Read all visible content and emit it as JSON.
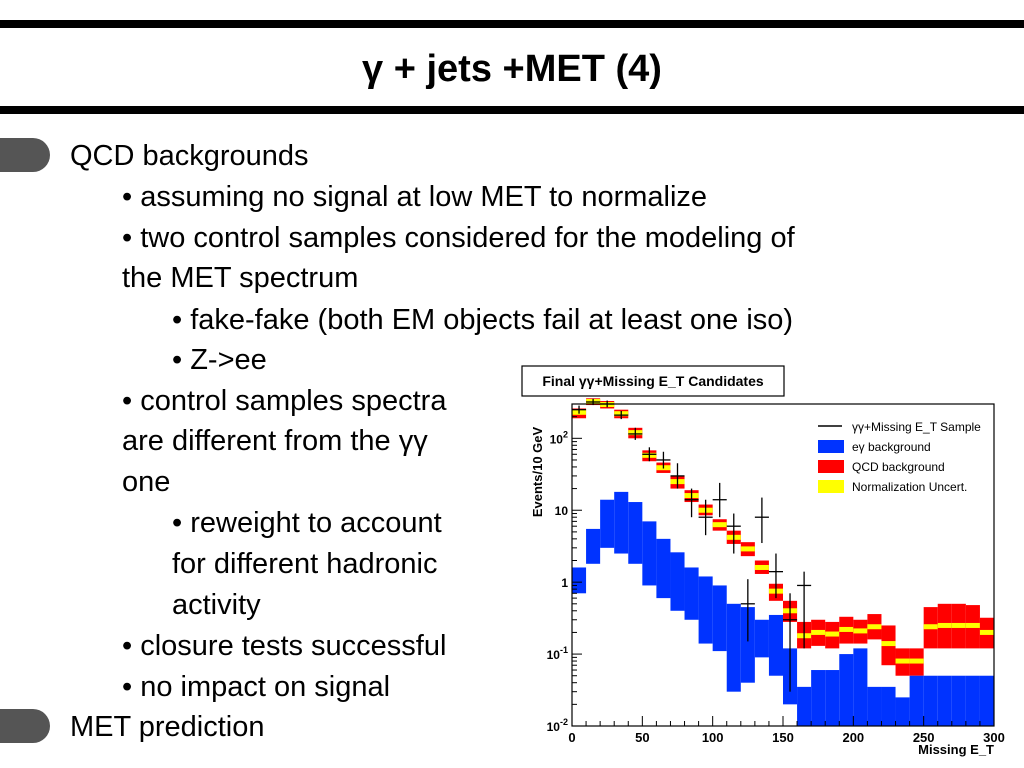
{
  "slide": {
    "title": "γ + jets +MET (4)",
    "lines": [
      "QCD backgrounds",
      "• assuming no signal at low MET to normalize",
      "• two control samples considered for the modeling of",
      "the MET spectrum",
      "• fake-fake (both EM objects fail at least one iso)",
      "• Z->ee",
      "• control samples spectra",
      "are different from the γγ",
      "one",
      "• reweight to account",
      "for different hadronic",
      "activity",
      "• closure tests successful",
      "• no impact on signal",
      "MET prediction"
    ]
  },
  "chart_data": {
    "type": "histogram",
    "title": "Final γγ+Missing E_T Candidates",
    "xlabel": "Missing E_T",
    "ylabel": "Events/10 GeV",
    "x_scale": "linear",
    "y_scale": "log",
    "xlim": [
      0,
      300
    ],
    "ylim": [
      0.01,
      300
    ],
    "x_ticks": [
      "0",
      "50",
      "100",
      "150",
      "200",
      "250",
      "300"
    ],
    "y_ticks": [
      "10^-2",
      "10^-1",
      "1",
      "10",
      "10^2"
    ],
    "bin_width": 10,
    "legend_position": "top-right",
    "legend": [
      {
        "label": "γγ+Missing E_T Sample",
        "style": "line",
        "color": "#000000"
      },
      {
        "label": "eγ background",
        "style": "fill",
        "color": "#0033ff"
      },
      {
        "label": "QCD background",
        "style": "fill",
        "color": "#ff0000"
      },
      {
        "label": "Normalization Uncert.",
        "style": "fill",
        "color": "#ffff00"
      }
    ],
    "series": [
      {
        "name": "eγ background",
        "color": "#0033ff",
        "bins": [
          {
            "x": 0,
            "lo": 0.7,
            "hi": 1.6
          },
          {
            "x": 10,
            "lo": 1.8,
            "hi": 5.5
          },
          {
            "x": 20,
            "lo": 3.0,
            "hi": 14.0
          },
          {
            "x": 30,
            "lo": 2.5,
            "hi": 18.0
          },
          {
            "x": 40,
            "lo": 1.8,
            "hi": 13.0
          },
          {
            "x": 50,
            "lo": 0.9,
            "hi": 7.0
          },
          {
            "x": 60,
            "lo": 0.6,
            "hi": 4.0
          },
          {
            "x": 70,
            "lo": 0.4,
            "hi": 2.6
          },
          {
            "x": 80,
            "lo": 0.3,
            "hi": 1.6
          },
          {
            "x": 90,
            "lo": 0.14,
            "hi": 1.2
          },
          {
            "x": 100,
            "lo": 0.11,
            "hi": 0.9
          },
          {
            "x": 110,
            "lo": 0.03,
            "hi": 0.5
          },
          {
            "x": 120,
            "lo": 0.04,
            "hi": 0.45
          },
          {
            "x": 130,
            "lo": 0.09,
            "hi": 0.3
          },
          {
            "x": 140,
            "lo": 0.05,
            "hi": 0.35
          },
          {
            "x": 150,
            "lo": 0.02,
            "hi": 0.12
          },
          {
            "x": 160,
            "lo": 0.01,
            "hi": 0.035
          },
          {
            "x": 170,
            "lo": 0.01,
            "hi": 0.06
          },
          {
            "x": 180,
            "lo": 0.01,
            "hi": 0.06
          },
          {
            "x": 190,
            "lo": 0.01,
            "hi": 0.1
          },
          {
            "x": 200,
            "lo": 0.01,
            "hi": 0.12
          },
          {
            "x": 210,
            "lo": 0.01,
            "hi": 0.035
          },
          {
            "x": 220,
            "lo": 0.01,
            "hi": 0.035
          },
          {
            "x": 230,
            "lo": 0.01,
            "hi": 0.025
          },
          {
            "x": 240,
            "lo": 0.01,
            "hi": 0.05
          },
          {
            "x": 250,
            "lo": 0.01,
            "hi": 0.05
          },
          {
            "x": 260,
            "lo": 0.01,
            "hi": 0.05
          },
          {
            "x": 270,
            "lo": 0.01,
            "hi": 0.05
          },
          {
            "x": 280,
            "lo": 0.01,
            "hi": 0.05
          },
          {
            "x": 290,
            "lo": 0.01,
            "hi": 0.05
          }
        ]
      },
      {
        "name": "QCD background",
        "color": "#ff0000",
        "bins": [
          {
            "x": 0,
            "lo": 190,
            "hi": 260,
            "center": 230
          },
          {
            "x": 10,
            "lo": 290,
            "hi": 360,
            "center": 325
          },
          {
            "x": 20,
            "lo": 260,
            "hi": 330,
            "center": 295
          },
          {
            "x": 30,
            "lo": 190,
            "hi": 250,
            "center": 220
          },
          {
            "x": 40,
            "lo": 100,
            "hi": 140,
            "center": 120
          },
          {
            "x": 50,
            "lo": 48,
            "hi": 68,
            "center": 58
          },
          {
            "x": 60,
            "lo": 33,
            "hi": 46,
            "center": 39
          },
          {
            "x": 70,
            "lo": 20,
            "hi": 30,
            "center": 25
          },
          {
            "x": 80,
            "lo": 13,
            "hi": 19,
            "center": 16
          },
          {
            "x": 90,
            "lo": 8.5,
            "hi": 12,
            "center": 10
          },
          {
            "x": 100,
            "lo": 5.2,
            "hi": 7.5,
            "center": 6.3
          },
          {
            "x": 110,
            "lo": 3.4,
            "hi": 5.2,
            "center": 4.2
          },
          {
            "x": 120,
            "lo": 2.3,
            "hi": 3.6,
            "center": 2.9
          },
          {
            "x": 130,
            "lo": 1.3,
            "hi": 2.0,
            "center": 1.6
          },
          {
            "x": 140,
            "lo": 0.55,
            "hi": 0.95,
            "center": 0.75
          },
          {
            "x": 150,
            "lo": 0.28,
            "hi": 0.55,
            "center": 0.4
          },
          {
            "x": 160,
            "lo": 0.12,
            "hi": 0.28,
            "center": 0.18
          },
          {
            "x": 170,
            "lo": 0.13,
            "hi": 0.3,
            "center": 0.2
          },
          {
            "x": 180,
            "lo": 0.12,
            "hi": 0.28,
            "center": 0.19
          },
          {
            "x": 190,
            "lo": 0.14,
            "hi": 0.33,
            "center": 0.22
          },
          {
            "x": 200,
            "lo": 0.14,
            "hi": 0.3,
            "center": 0.21
          },
          {
            "x": 210,
            "lo": 0.16,
            "hi": 0.36,
            "center": 0.24
          },
          {
            "x": 220,
            "lo": 0.07,
            "hi": 0.25,
            "center": 0.14
          },
          {
            "x": 230,
            "lo": 0.05,
            "hi": 0.12,
            "center": 0.08
          },
          {
            "x": 240,
            "lo": 0.05,
            "hi": 0.12,
            "center": 0.08
          },
          {
            "x": 250,
            "lo": 0.12,
            "hi": 0.45,
            "center": 0.24
          },
          {
            "x": 260,
            "lo": 0.12,
            "hi": 0.5,
            "center": 0.25
          },
          {
            "x": 270,
            "lo": 0.12,
            "hi": 0.5,
            "center": 0.25
          },
          {
            "x": 280,
            "lo": 0.12,
            "hi": 0.48,
            "center": 0.25
          },
          {
            "x": 290,
            "lo": 0.12,
            "hi": 0.32,
            "center": 0.2
          }
        ]
      },
      {
        "name": "γγ+Missing E_T Sample",
        "color": "#000000",
        "points": [
          {
            "x": 5,
            "y": 250,
            "lo": 220,
            "hi": 285
          },
          {
            "x": 15,
            "y": 320,
            "lo": 290,
            "hi": 355
          },
          {
            "x": 25,
            "y": 300,
            "lo": 270,
            "hi": 335
          },
          {
            "x": 35,
            "y": 210,
            "lo": 185,
            "hi": 240
          },
          {
            "x": 45,
            "y": 115,
            "lo": 95,
            "hi": 140
          },
          {
            "x": 55,
            "y": 60,
            "lo": 48,
            "hi": 75
          },
          {
            "x": 65,
            "y": 50,
            "lo": 38,
            "hi": 65
          },
          {
            "x": 75,
            "y": 30,
            "lo": 20,
            "hi": 45
          },
          {
            "x": 85,
            "y": 14,
            "lo": 8,
            "hi": 20
          },
          {
            "x": 95,
            "y": 8,
            "lo": 4.5,
            "hi": 14
          },
          {
            "x": 105,
            "y": 14,
            "lo": 8,
            "hi": 24
          },
          {
            "x": 115,
            "y": 6,
            "lo": 2.5,
            "hi": 9
          },
          {
            "x": 125,
            "y": 0.5,
            "lo": 0.15,
            "hi": 1.1
          },
          {
            "x": 135,
            "y": 8,
            "lo": 3.5,
            "hi": 15
          },
          {
            "x": 145,
            "y": 1.4,
            "lo": 0.6,
            "hi": 2.5
          },
          {
            "x": 155,
            "y": 0.3,
            "lo": 0.03,
            "hi": 0.7
          },
          {
            "x": 165,
            "y": 0.9,
            "lo": 0.12,
            "hi": 1.4
          }
        ]
      }
    ]
  }
}
